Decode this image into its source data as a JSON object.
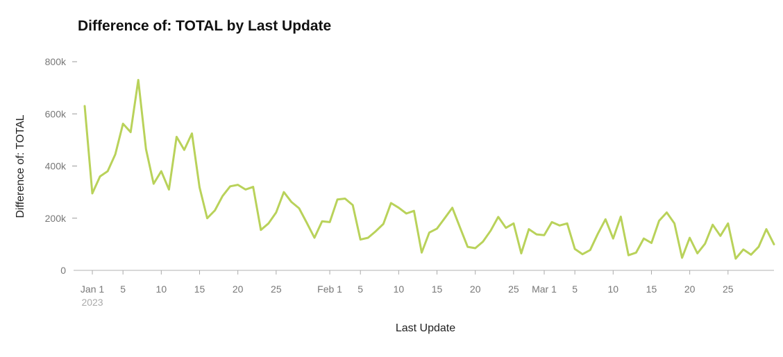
{
  "chart_data": {
    "type": "line",
    "title": "Difference of: TOTAL by Last Update",
    "xlabel": "Last Update",
    "ylabel": "Difference of: TOTAL",
    "ylim": [
      0,
      800000
    ],
    "y_ticks": [
      {
        "value": 0,
        "label": "0"
      },
      {
        "value": 200000,
        "label": "200k"
      },
      {
        "value": 400000,
        "label": "400k"
      },
      {
        "value": 600000,
        "label": "600k"
      },
      {
        "value": 800000,
        "label": "800k"
      }
    ],
    "x_start_date": "2022-12-31",
    "x_end_date": "2023-03-31",
    "x_ticks": [
      {
        "date": "2023-01-01",
        "label": "Jan 1"
      },
      {
        "date": "2023-01-05",
        "label": "5"
      },
      {
        "date": "2023-01-10",
        "label": "10"
      },
      {
        "date": "2023-01-15",
        "label": "15"
      },
      {
        "date": "2023-01-20",
        "label": "20"
      },
      {
        "date": "2023-01-25",
        "label": "25"
      },
      {
        "date": "2023-02-01",
        "label": "Feb 1"
      },
      {
        "date": "2023-02-05",
        "label": "5"
      },
      {
        "date": "2023-02-10",
        "label": "10"
      },
      {
        "date": "2023-02-15",
        "label": "15"
      },
      {
        "date": "2023-02-20",
        "label": "20"
      },
      {
        "date": "2023-02-25",
        "label": "25"
      },
      {
        "date": "2023-03-01",
        "label": "Mar 1"
      },
      {
        "date": "2023-03-05",
        "label": "5"
      },
      {
        "date": "2023-03-10",
        "label": "10"
      },
      {
        "date": "2023-03-15",
        "label": "15"
      },
      {
        "date": "2023-03-20",
        "label": "20"
      },
      {
        "date": "2023-03-25",
        "label": "25"
      }
    ],
    "year_label": "2023",
    "line_color": "#b9d25a",
    "grid": false,
    "legend": "none",
    "x": [
      "2022-12-31",
      "2023-01-01",
      "2023-01-02",
      "2023-01-03",
      "2023-01-04",
      "2023-01-05",
      "2023-01-06",
      "2023-01-07",
      "2023-01-08",
      "2023-01-09",
      "2023-01-10",
      "2023-01-11",
      "2023-01-12",
      "2023-01-13",
      "2023-01-14",
      "2023-01-15",
      "2023-01-16",
      "2023-01-17",
      "2023-01-18",
      "2023-01-19",
      "2023-01-20",
      "2023-01-21",
      "2023-01-22",
      "2023-01-23",
      "2023-01-24",
      "2023-01-25",
      "2023-01-26",
      "2023-01-27",
      "2023-01-28",
      "2023-01-29",
      "2023-01-30",
      "2023-01-31",
      "2023-02-01",
      "2023-02-02",
      "2023-02-03",
      "2023-02-04",
      "2023-02-05",
      "2023-02-06",
      "2023-02-07",
      "2023-02-08",
      "2023-02-09",
      "2023-02-10",
      "2023-02-11",
      "2023-02-12",
      "2023-02-13",
      "2023-02-14",
      "2023-02-15",
      "2023-02-16",
      "2023-02-17",
      "2023-02-18",
      "2023-02-19",
      "2023-02-20",
      "2023-02-21",
      "2023-02-22",
      "2023-02-23",
      "2023-02-24",
      "2023-02-25",
      "2023-02-26",
      "2023-02-27",
      "2023-02-28",
      "2023-03-01",
      "2023-03-02",
      "2023-03-03",
      "2023-03-04",
      "2023-03-05",
      "2023-03-06",
      "2023-03-07",
      "2023-03-08",
      "2023-03-09",
      "2023-03-10",
      "2023-03-11",
      "2023-03-12",
      "2023-03-13",
      "2023-03-14",
      "2023-03-15",
      "2023-03-16",
      "2023-03-17",
      "2023-03-18",
      "2023-03-19",
      "2023-03-20",
      "2023-03-21",
      "2023-03-22",
      "2023-03-23",
      "2023-03-24",
      "2023-03-25",
      "2023-03-26",
      "2023-03-27",
      "2023-03-28",
      "2023-03-29",
      "2023-03-30",
      "2023-03-31"
    ],
    "series": [
      {
        "values": [
          630000,
          295000,
          360000,
          380000,
          445000,
          562000,
          530000,
          730000,
          465000,
          332000,
          380000,
          310000,
          512000,
          462000,
          525000,
          318000,
          200000,
          230000,
          285000,
          322000,
          328000,
          310000,
          320000,
          155000,
          180000,
          222000,
          300000,
          262000,
          238000,
          182000,
          125000,
          188000,
          185000,
          272000,
          275000,
          250000,
          118000,
          125000,
          150000,
          178000,
          258000,
          240000,
          218000,
          228000,
          68000,
          145000,
          160000,
          200000,
          240000,
          165000,
          90000,
          85000,
          110000,
          152000,
          205000,
          163000,
          180000,
          65000,
          158000,
          138000,
          135000,
          185000,
          172000,
          180000,
          82000,
          62000,
          78000,
          140000,
          196000,
          122000,
          206000,
          58000,
          68000,
          122000,
          105000,
          190000,
          222000,
          180000,
          48000,
          125000,
          65000,
          102000,
          175000,
          132000,
          180000,
          45000,
          80000,
          60000,
          90000,
          158000,
          100000
        ]
      }
    ]
  }
}
